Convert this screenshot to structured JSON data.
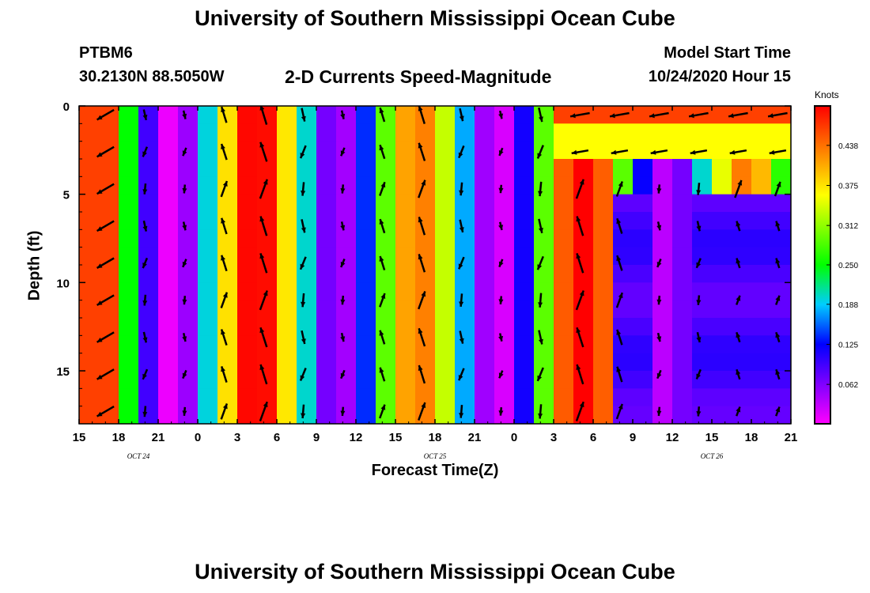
{
  "header": {
    "title": "University of Southern Mississippi Ocean Cube",
    "station_id": "PTBM6",
    "coordinates": "30.2130N 88.5050W",
    "subtitle": "2-D Currents Speed-Magnitude",
    "model_start_label": "Model Start Time",
    "model_start_value": "10/24/2020 Hour 15"
  },
  "footer": {
    "title": "University of Southern Mississippi Ocean Cube"
  },
  "chart_data": {
    "type": "heatmap",
    "title": "2-D Currents Speed-Magnitude",
    "xlabel": "Forecast Time(Z)",
    "ylabel": "Depth (ft)",
    "colorbar_label": "Knots",
    "x_ticks": [
      "15",
      "18",
      "21",
      "0",
      "3",
      "6",
      "9",
      "12",
      "15",
      "18",
      "21",
      "0",
      "3",
      "6",
      "9",
      "12",
      "15",
      "18",
      "21"
    ],
    "date_labels": [
      {
        "label": "OCT 24",
        "hour_offset": 4.5
      },
      {
        "label": "OCT 25",
        "hour_offset": 27
      },
      {
        "label": "OCT 26",
        "hour_offset": 48
      }
    ],
    "x_range_hours_from_start": [
      0,
      54
    ],
    "y_ticks": [
      0,
      5,
      10,
      15
    ],
    "y_range_ft": [
      0,
      18
    ],
    "y_inverted": true,
    "colorbar_ticks": [
      "0.438",
      "0.375",
      "0.312",
      "0.250",
      "0.188",
      "0.125",
      "0.062"
    ],
    "colorbar_range_knots": [
      0,
      0.5
    ],
    "colors": {
      "low": "#ff00ff",
      "mid_low": "#0000ff",
      "mid": "#00ff00",
      "mid_high": "#ffff00",
      "high": "#ff0000"
    }
  }
}
